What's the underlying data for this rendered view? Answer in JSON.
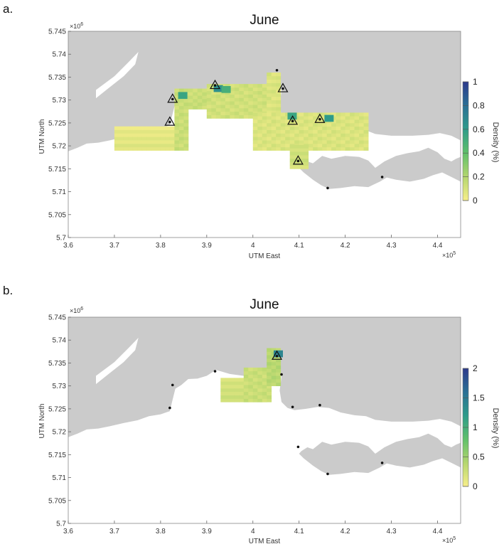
{
  "chart_data": [
    {
      "type": "heatmap",
      "panel_label": "a.",
      "title": "June",
      "xlabel": "UTM East",
      "ylabel": "UTM North",
      "xlim": [
        3.6,
        4.45
      ],
      "ylim": [
        5.7,
        5.745
      ],
      "x_ticks": [
        "3.6",
        "3.7",
        "3.8",
        "3.9",
        "4",
        "4.1",
        "4.2",
        "4.3",
        "4.4"
      ],
      "y_ticks": [
        "5.7",
        "5.705",
        "5.71",
        "5.715",
        "5.72",
        "5.725",
        "5.73",
        "5.735",
        "5.74",
        "5.745"
      ],
      "x_exponent": "×10",
      "x_exponent_power": "5",
      "y_exponent": "×10",
      "y_exponent_power": "6",
      "colorbar": {
        "label": "Density (%)",
        "min": 0,
        "max": 1,
        "ticks": [
          "0",
          "0.2",
          "0.4",
          "0.6",
          "0.8",
          "1"
        ],
        "colors": [
          "#f7ee8a",
          "#b4d66e",
          "#5fc06a",
          "#2e9b8a",
          "#2a6f95",
          "#2c3a8c"
        ]
      },
      "regions": [
        {
          "x": [
            3.7,
            3.83
          ],
          "y": [
            5.719,
            5.724
          ],
          "density": 0.02
        },
        {
          "x": [
            3.83,
            3.86
          ],
          "y": [
            5.719,
            5.732
          ],
          "density": 0.1
        },
        {
          "x": [
            3.86,
            3.9
          ],
          "y": [
            5.728,
            5.732
          ],
          "density": 0.1
        },
        {
          "x": [
            3.9,
            4.04
          ],
          "y": [
            5.726,
            5.733
          ],
          "density": 0.08
        },
        {
          "x": [
            4.03,
            4.06
          ],
          "y": [
            5.727,
            5.736
          ],
          "density": 0.05
        },
        {
          "x": [
            4.0,
            4.25
          ],
          "y": [
            5.719,
            5.727
          ],
          "density": 0.05
        },
        {
          "x": [
            4.08,
            4.12
          ],
          "y": [
            5.715,
            5.72
          ],
          "density": 0.08
        }
      ],
      "hotspots": [
        {
          "x": 3.848,
          "y": 5.731,
          "density": 0.55
        },
        {
          "x": 3.925,
          "y": 5.7325,
          "density": 0.65
        },
        {
          "x": 3.942,
          "y": 5.7323,
          "density": 0.5
        },
        {
          "x": 4.085,
          "y": 5.7265,
          "density": 0.55
        },
        {
          "x": 4.165,
          "y": 5.726,
          "density": 0.6
        }
      ],
      "stations": [
        {
          "x": 3.826,
          "y": 5.7302,
          "marker": "triangle"
        },
        {
          "x": 3.82,
          "y": 5.7252,
          "marker": "triangle"
        },
        {
          "x": 3.918,
          "y": 5.7332,
          "marker": "triangle"
        },
        {
          "x": 4.065,
          "y": 5.7325,
          "marker": "triangle"
        },
        {
          "x": 4.086,
          "y": 5.7254,
          "marker": "triangle"
        },
        {
          "x": 4.145,
          "y": 5.7258,
          "marker": "triangle"
        },
        {
          "x": 4.098,
          "y": 5.7167,
          "marker": "triangle"
        },
        {
          "x": 4.052,
          "y": 5.7365,
          "marker": "dot"
        },
        {
          "x": 4.162,
          "y": 5.7108,
          "marker": "dot"
        },
        {
          "x": 4.28,
          "y": 5.7132,
          "marker": "dot"
        }
      ]
    },
    {
      "type": "heatmap",
      "panel_label": "b.",
      "title": "June",
      "xlabel": "UTM East",
      "ylabel": "UTM North",
      "xlim": [
        3.6,
        4.45
      ],
      "ylim": [
        5.7,
        5.745
      ],
      "x_ticks": [
        "3.6",
        "3.7",
        "3.8",
        "3.9",
        "4",
        "4.1",
        "4.2",
        "4.3",
        "4.4"
      ],
      "y_ticks": [
        "5.7",
        "5.705",
        "5.71",
        "5.715",
        "5.72",
        "5.725",
        "5.73",
        "5.735",
        "5.74",
        "5.745"
      ],
      "x_exponent": "×10",
      "x_exponent_power": "5",
      "y_exponent": "×10",
      "y_exponent_power": "6",
      "colorbar": {
        "label": "Density (%)",
        "min": 0,
        "max": 2,
        "ticks": [
          "0",
          "0.5",
          "1",
          "1.5",
          "2"
        ],
        "colors": [
          "#f7ee8a",
          "#b4d66e",
          "#5fc06a",
          "#2e9b8a",
          "#2a6f95",
          "#2c3a8c"
        ]
      },
      "regions": [
        {
          "x": [
            3.93,
            4.03
          ],
          "y": [
            5.7265,
            5.7315
          ],
          "density": 0.15
        },
        {
          "x": [
            3.98,
            4.04
          ],
          "y": [
            5.7265,
            5.734
          ],
          "density": 0.2
        },
        {
          "x": [
            4.03,
            4.06
          ],
          "y": [
            5.73,
            5.738
          ],
          "density": 0.3
        }
      ],
      "hotspots": [
        {
          "x": 4.055,
          "y": 5.737,
          "density": 1.4
        }
      ],
      "stations": [
        {
          "x": 4.052,
          "y": 5.7365,
          "marker": "triangle"
        },
        {
          "x": 3.826,
          "y": 5.7302,
          "marker": "dot"
        },
        {
          "x": 3.82,
          "y": 5.7252,
          "marker": "dot"
        },
        {
          "x": 3.918,
          "y": 5.7332,
          "marker": "dot"
        },
        {
          "x": 4.062,
          "y": 5.7325,
          "marker": "dot"
        },
        {
          "x": 4.086,
          "y": 5.7254,
          "marker": "dot"
        },
        {
          "x": 4.145,
          "y": 5.7258,
          "marker": "dot"
        },
        {
          "x": 4.098,
          "y": 5.7167,
          "marker": "dot"
        },
        {
          "x": 4.162,
          "y": 5.7108,
          "marker": "dot"
        },
        {
          "x": 4.28,
          "y": 5.7132,
          "marker": "dot"
        }
      ]
    }
  ],
  "colors": {
    "land": "#cbcbcb",
    "sea": "#ffffff",
    "axis": "#555555"
  }
}
